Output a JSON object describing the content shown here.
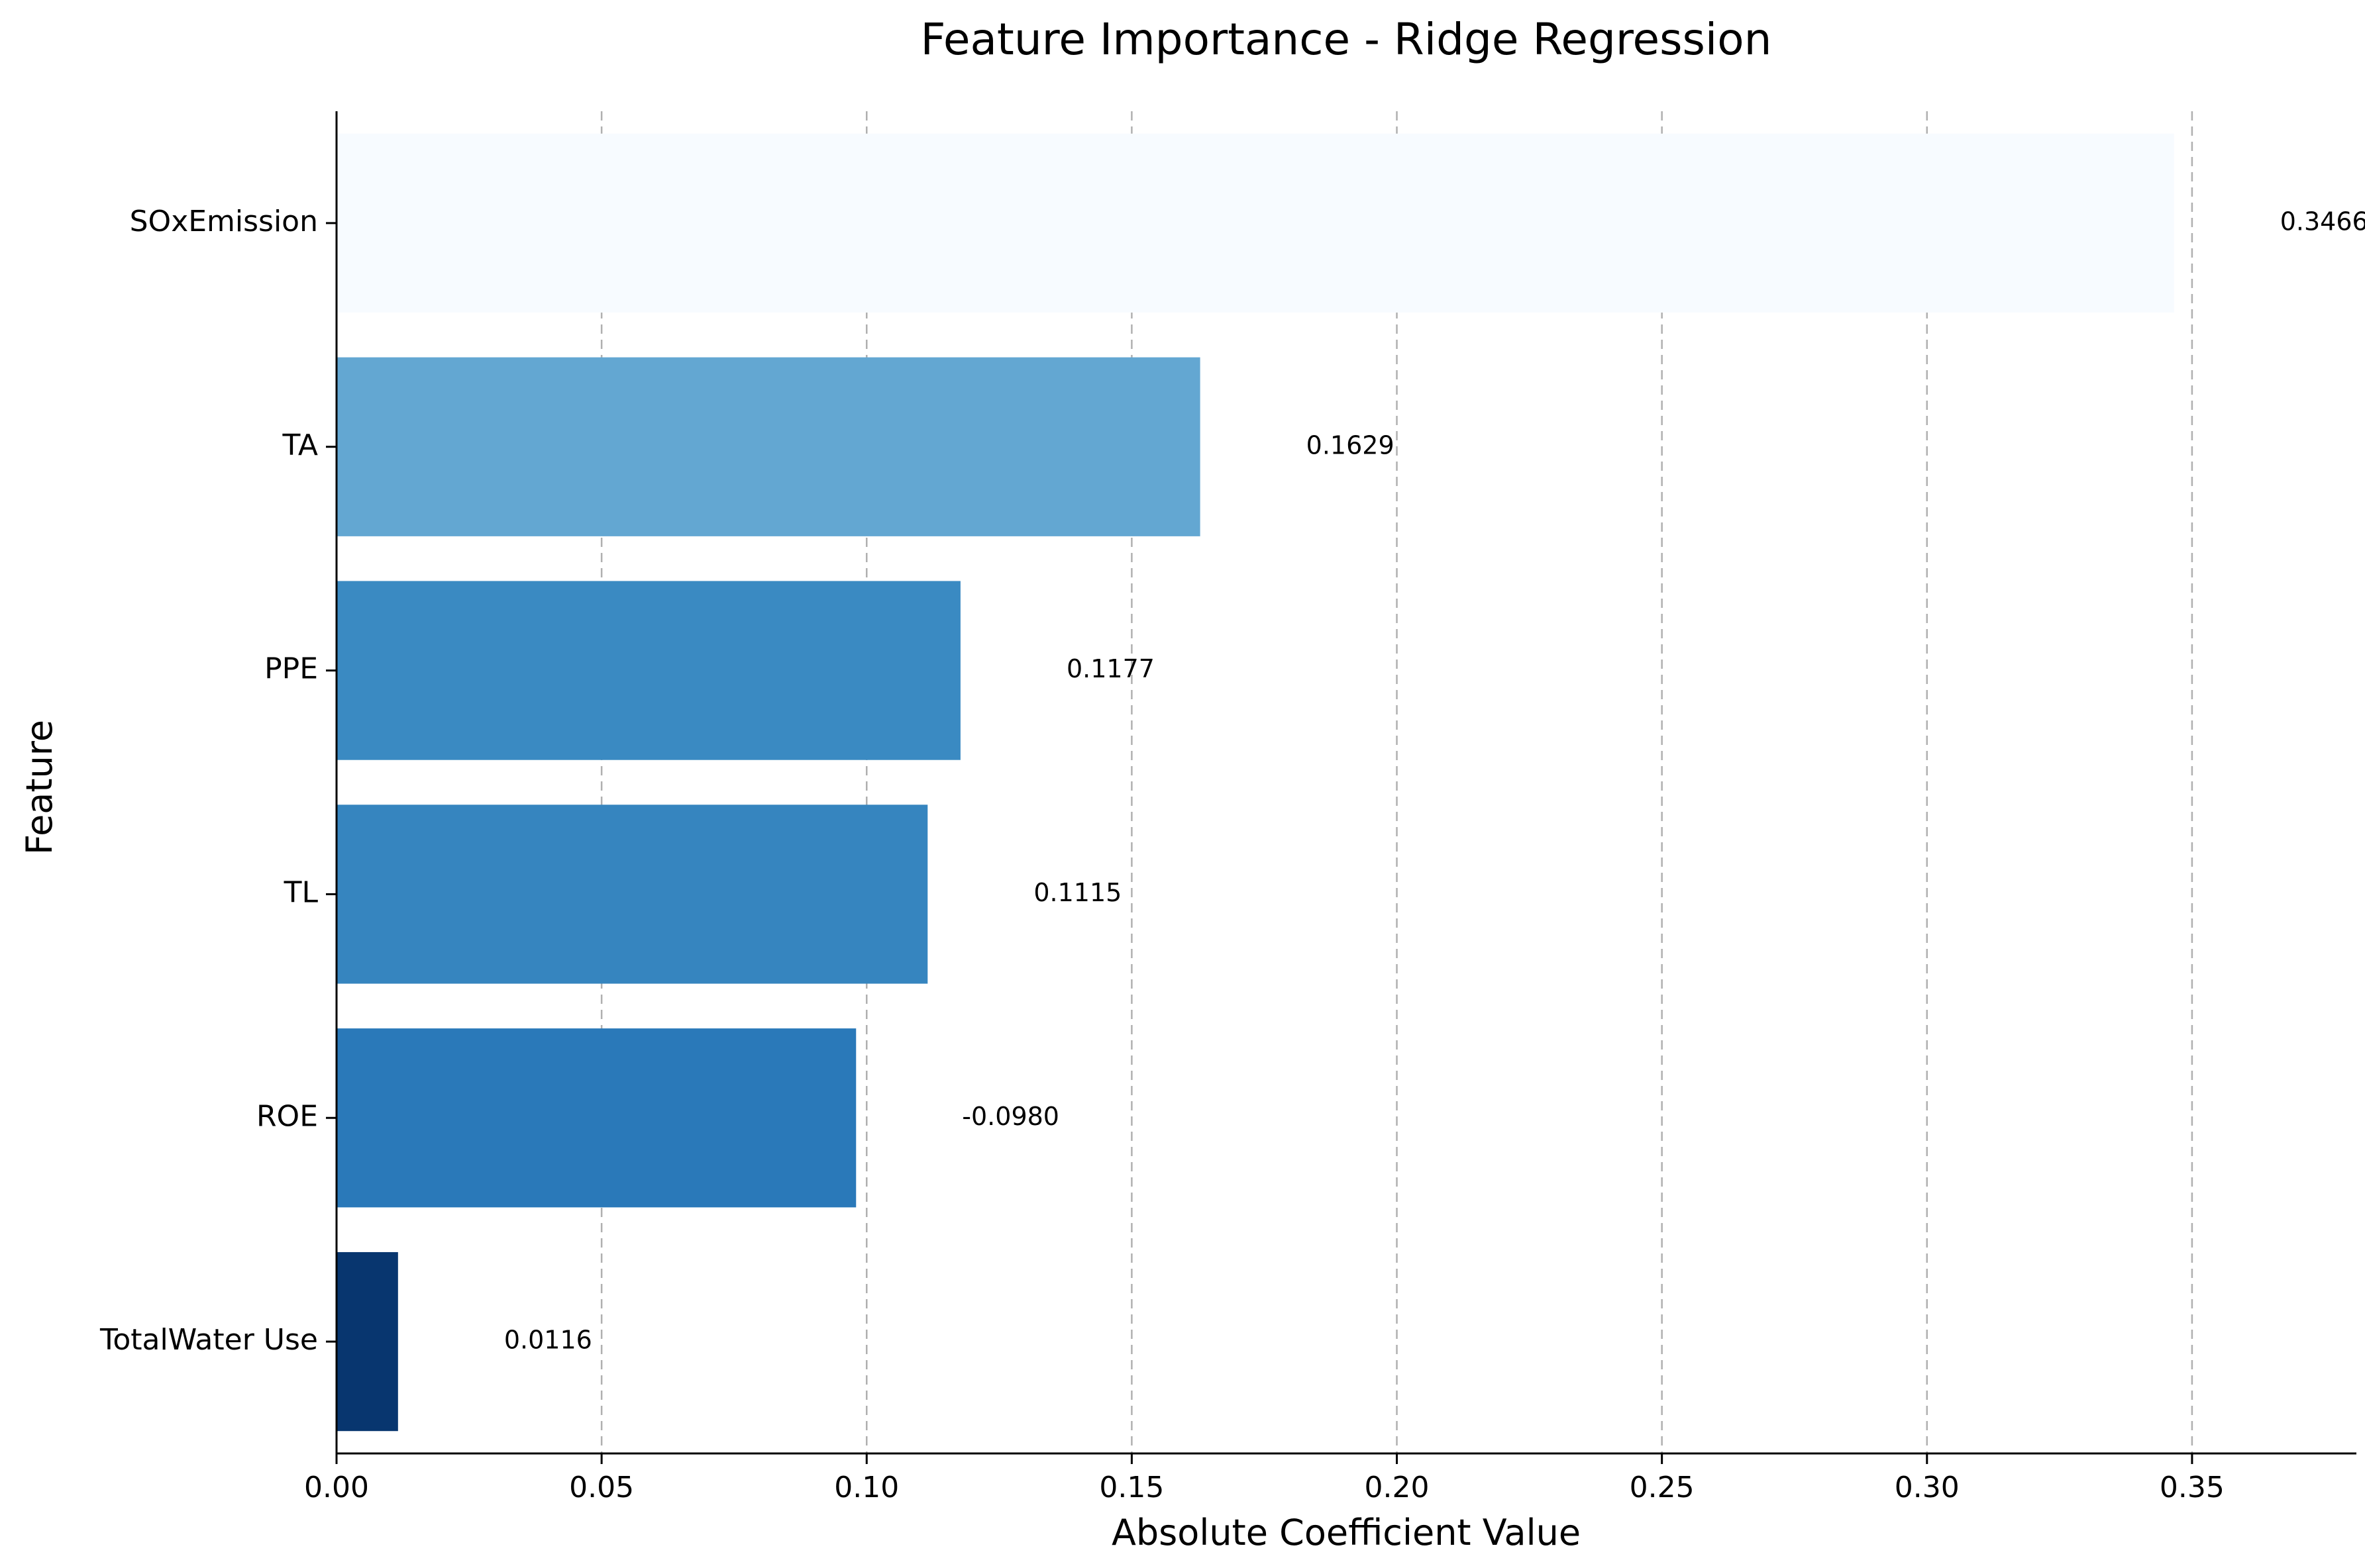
{
  "chart_data": {
    "type": "bar",
    "orientation": "horizontal",
    "title": "Feature Importance - Ridge Regression",
    "xlabel": "Absolute Coefficient Value",
    "ylabel": "Feature",
    "xlim": [
      0,
      0.381
    ],
    "xticks": [
      0.0,
      0.05,
      0.1,
      0.15,
      0.2,
      0.25,
      0.3,
      0.35
    ],
    "xtick_labels": [
      "0.00",
      "0.05",
      "0.10",
      "0.15",
      "0.20",
      "0.25",
      "0.30",
      "0.35"
    ],
    "grid": "x-dashed",
    "categories": [
      "SOxEmission",
      "TA",
      "PPE",
      "TL",
      "ROE",
      "TotalWater Use"
    ],
    "values": [
      0.3466,
      0.1629,
      0.1177,
      0.1115,
      0.098,
      0.0116
    ],
    "data_labels": [
      "0.3466",
      "0.1629",
      "0.1177",
      "0.1115",
      "-0.0980",
      "0.0116"
    ],
    "colors": [
      "#f7fbff",
      "#63a7d2",
      "#3a8ac2",
      "#3685bf",
      "#2a79b9",
      "#08366f"
    ]
  }
}
